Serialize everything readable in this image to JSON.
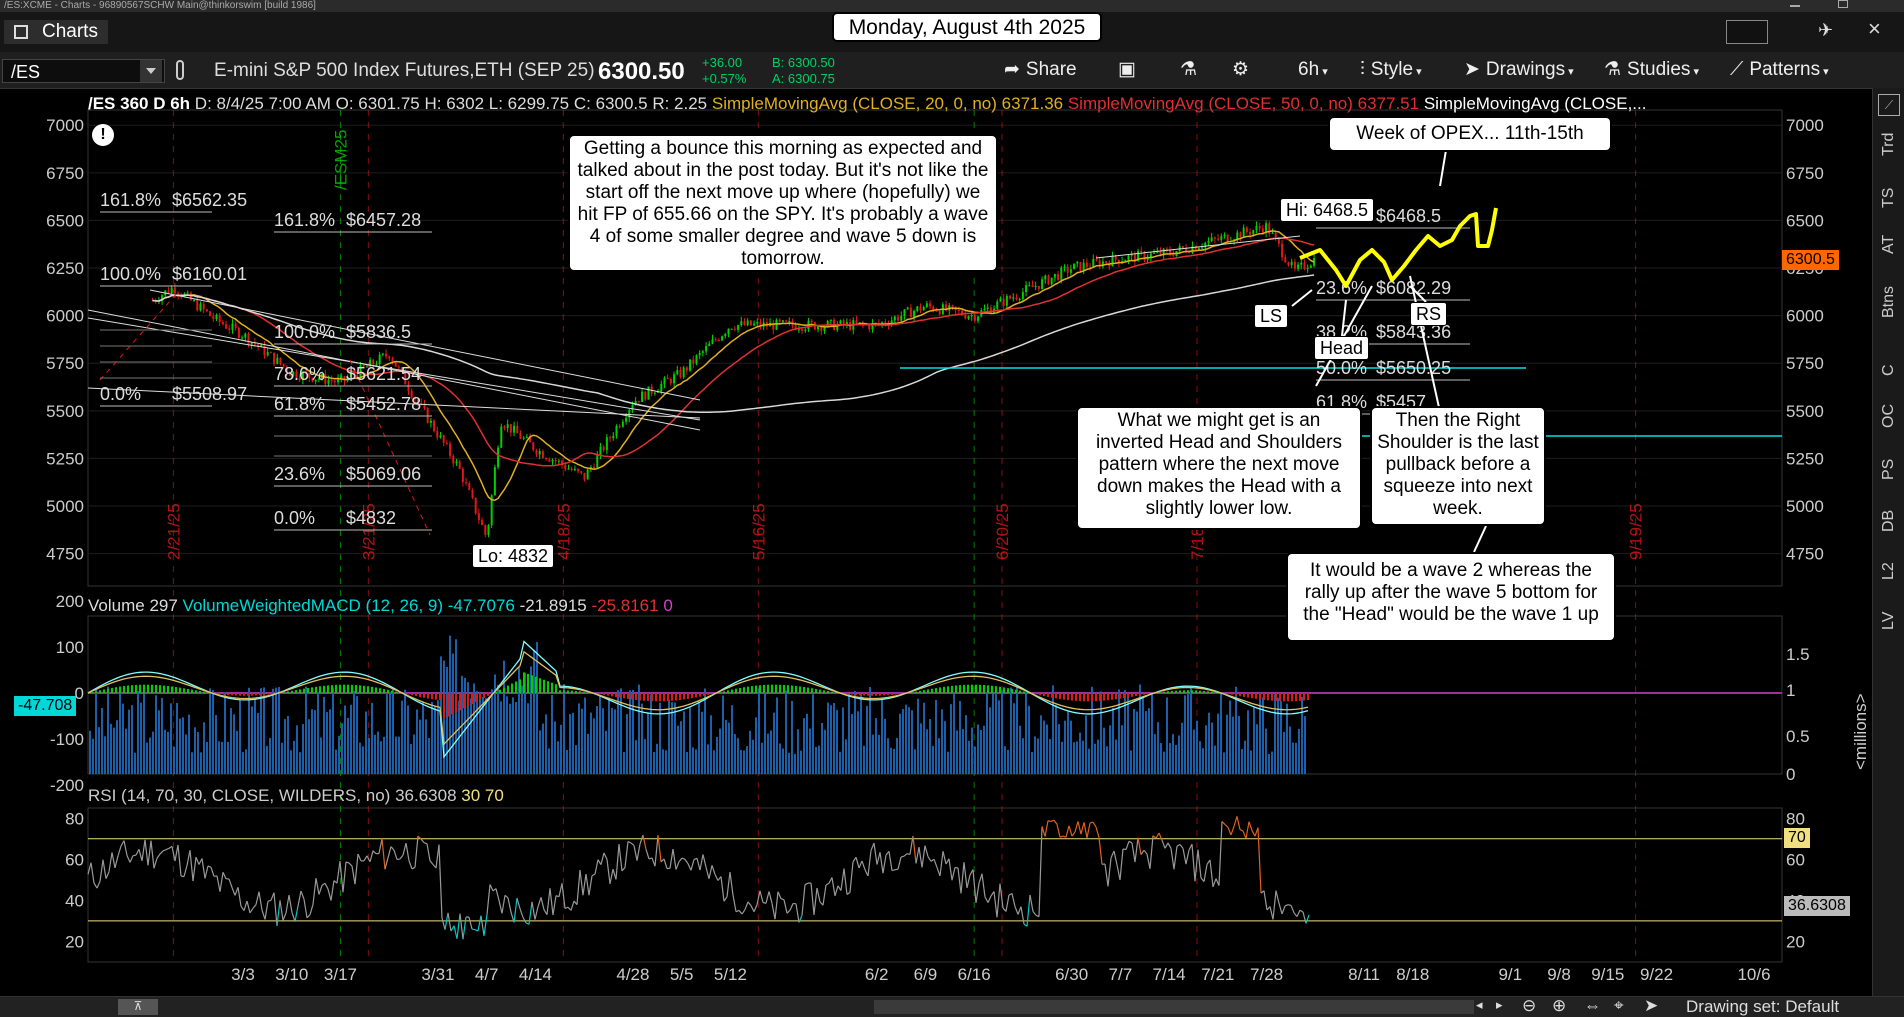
{
  "window": {
    "title": "/ES:XCME - Charts - 96890567SCHW Main@thinkorswim [build 1986]",
    "tab_label": "Charts",
    "date_banner": "Monday, August 4th 2025"
  },
  "toolbar": {
    "symbol": "/ES",
    "description": "E-mini S&P 500 Index Futures,ETH (SEP 25)",
    "last_price": "6300.50",
    "change": "+36.00",
    "change_pct": "+0.57%",
    "bid": "B: 6300.50",
    "ask": "A: 6300.75",
    "share_label": "Share",
    "timeframe_label": "6h",
    "style_label": "Style",
    "drawings_label": "Drawings",
    "studies_label": "Studies",
    "patterns_label": "Patterns"
  },
  "price_header": {
    "name": "/ES 360 D 6h",
    "date": "D: 8/4/25 7:00 AM",
    "open": "O: 6301.75",
    "high": "H: 6302",
    "low": "L: 6299.75",
    "close": "C: 6300.5",
    "range": "R: 2.25",
    "sma20_label": "SimpleMovingAvg (CLOSE, 20, 0, no)",
    "sma20_value": "6371.36",
    "sma50_label": "SimpleMovingAvg (CLOSE, 50, 0, no)",
    "sma50_value": "6377.51",
    "sma_more": "SimpleMovingAvg (CLOSE,..."
  },
  "volume_header": {
    "label": "Volume",
    "value": "297",
    "macd_label": "VolumeWeightedMACD (12, 26, 9)",
    "v1": "-47.7076",
    "v2": "-21.8915",
    "v3": "-25.8161",
    "v4": "0"
  },
  "rsi_header": {
    "label": "RSI (14, 70, 30, CLOSE, WILDERS, no)",
    "value": "36.6308",
    "v30": "30",
    "v70": "70"
  },
  "sidebar": [
    "Trd",
    "TS",
    "AT",
    "Btns",
    "C",
    "OC",
    "PS",
    "DB",
    "L2",
    "LV"
  ],
  "status": {
    "drawing_set": "Drawing set: Default"
  },
  "colors": {
    "up": "#00d000",
    "down": "#e01818",
    "sma20": "#e0b020",
    "sma50": "#e03030",
    "sma200": "#d8d8d8",
    "cyan": "#00e0e0",
    "yellow_path": "#ffff00",
    "price_tag": "#ff6600"
  },
  "annotations": {
    "main_note": "Getting a bounce this morning as expected and talked about in the post today.  But it's not like the start off the next move up where (hopefully) we hit FP of 655.66 on the SPY.  It's probably a wave 4 of some smaller degree and wave 5 down is tomorrow.",
    "opex_note": "Week of OPEX... 11th-15th",
    "hs_note": "What we might get is an inverted Head and Shoulders pattern where the next move down makes the Head with a slightly lower low.",
    "rs_note": "Then the Right Shoulder is the last pullback before a squeeze into next week.",
    "wave_note": "It would be a wave 2 whereas the rally up after the wave 5 bottom for the  \"Head\" would be the wave 1 up",
    "hi_label": "Hi: 6468.5",
    "lo_label": "Lo: 4832",
    "ls_label": "LS",
    "head_label": "Head",
    "rs_label": "RS",
    "price_tag": "6300.5",
    "rsi_tag": "36.6308",
    "rsi70_tag": "70",
    "macd_tag": "-47.708"
  },
  "chart_data": [
    {
      "type": "candlestick",
      "title": "/ES 360 D 6h",
      "y_ticks": [
        4750,
        5000,
        5250,
        5500,
        5750,
        6000,
        6250,
        6500,
        6750,
        7000
      ],
      "ylim": [
        4580,
        7080
      ],
      "x_ticks": [
        "3/3",
        "3/10",
        "3/17",
        "3/31",
        "4/7",
        "4/14",
        "4/28",
        "5/5",
        "5/12",
        "6/2",
        "6/9",
        "6/16",
        "6/30",
        "7/7",
        "7/14",
        "7/21",
        "7/28",
        "8/11",
        "8/18",
        "9/1",
        "9/8",
        "9/15",
        "9/22",
        "10/6"
      ],
      "approx_close_path": [
        {
          "x": "2/18",
          "y": 6080
        },
        {
          "x": "2/21",
          "y": 6150
        },
        {
          "x": "2/27",
          "y": 5980
        },
        {
          "x": "3/3",
          "y": 5900
        },
        {
          "x": "3/10",
          "y": 5700
        },
        {
          "x": "3/17",
          "y": 5650
        },
        {
          "x": "3/24",
          "y": 5800
        },
        {
          "x": "3/28",
          "y": 5550
        },
        {
          "x": "4/3",
          "y": 5200
        },
        {
          "x": "4/7",
          "y": 4832
        },
        {
          "x": "4/9",
          "y": 5450
        },
        {
          "x": "4/14",
          "y": 5300
        },
        {
          "x": "4/21",
          "y": 5150
        },
        {
          "x": "4/28",
          "y": 5550
        },
        {
          "x": "5/5",
          "y": 5700
        },
        {
          "x": "5/12",
          "y": 5950
        },
        {
          "x": "5/19",
          "y": 5950
        },
        {
          "x": "6/2",
          "y": 5950
        },
        {
          "x": "6/9",
          "y": 6050
        },
        {
          "x": "6/16",
          "y": 6000
        },
        {
          "x": "6/30",
          "y": 6250
        },
        {
          "x": "7/7",
          "y": 6300
        },
        {
          "x": "7/14",
          "y": 6330
        },
        {
          "x": "7/21",
          "y": 6400
        },
        {
          "x": "7/28",
          "y": 6468.5
        },
        {
          "x": "8/1",
          "y": 6230
        },
        {
          "x": "8/4",
          "y": 6300.5
        }
      ],
      "fib_levels_left": [
        {
          "label": "161.8%",
          "value": "$6562.35"
        },
        {
          "label": "100.0%",
          "value": "$6160.01"
        },
        {
          "label": "0.0%",
          "value": "$5508.97"
        }
      ],
      "fib_levels_mid": [
        {
          "label": "161.8%",
          "value": "$6457.28"
        },
        {
          "label": "100.0%",
          "value": "$5836.5"
        },
        {
          "label": "78.6%",
          "value": "$5621.54"
        },
        {
          "label": "61.8%",
          "value": "$5452.78"
        },
        {
          "label": "23.6%",
          "value": "$5069.06"
        },
        {
          "label": "0.0%",
          "value": "$4832"
        }
      ],
      "fib_levels_right": [
        {
          "label": "",
          "value": "$6468.5"
        },
        {
          "label": "23.6%",
          "value": "$6082.29"
        },
        {
          "label": "38.2%",
          "value": "$5843.36"
        },
        {
          "label": "50.0%",
          "value": "$5650.25"
        },
        {
          "label": "61.8%",
          "value": "$5457"
        }
      ],
      "vertical_labels": [
        "2/21/25",
        "/ESM25",
        "3/21/25",
        "4/18/25",
        "5/16/25",
        "6/20/25",
        "7/18",
        "9/19/25"
      ],
      "last_price": 6300.5
    },
    {
      "type": "bar",
      "title": "Volume / VolumeWeightedMACD",
      "y_ticks": [
        200,
        100,
        0,
        -100,
        -200
      ],
      "right_ticks": [
        "1.5",
        "1",
        "0.5",
        "0"
      ],
      "right_unit": "<millions>"
    },
    {
      "type": "line",
      "title": "RSI (14, 70, 30, CLOSE, WILDERS, no)",
      "y_ticks": [
        20,
        40,
        60,
        80
      ],
      "levels": [
        30,
        70
      ],
      "last": 36.6308
    }
  ]
}
